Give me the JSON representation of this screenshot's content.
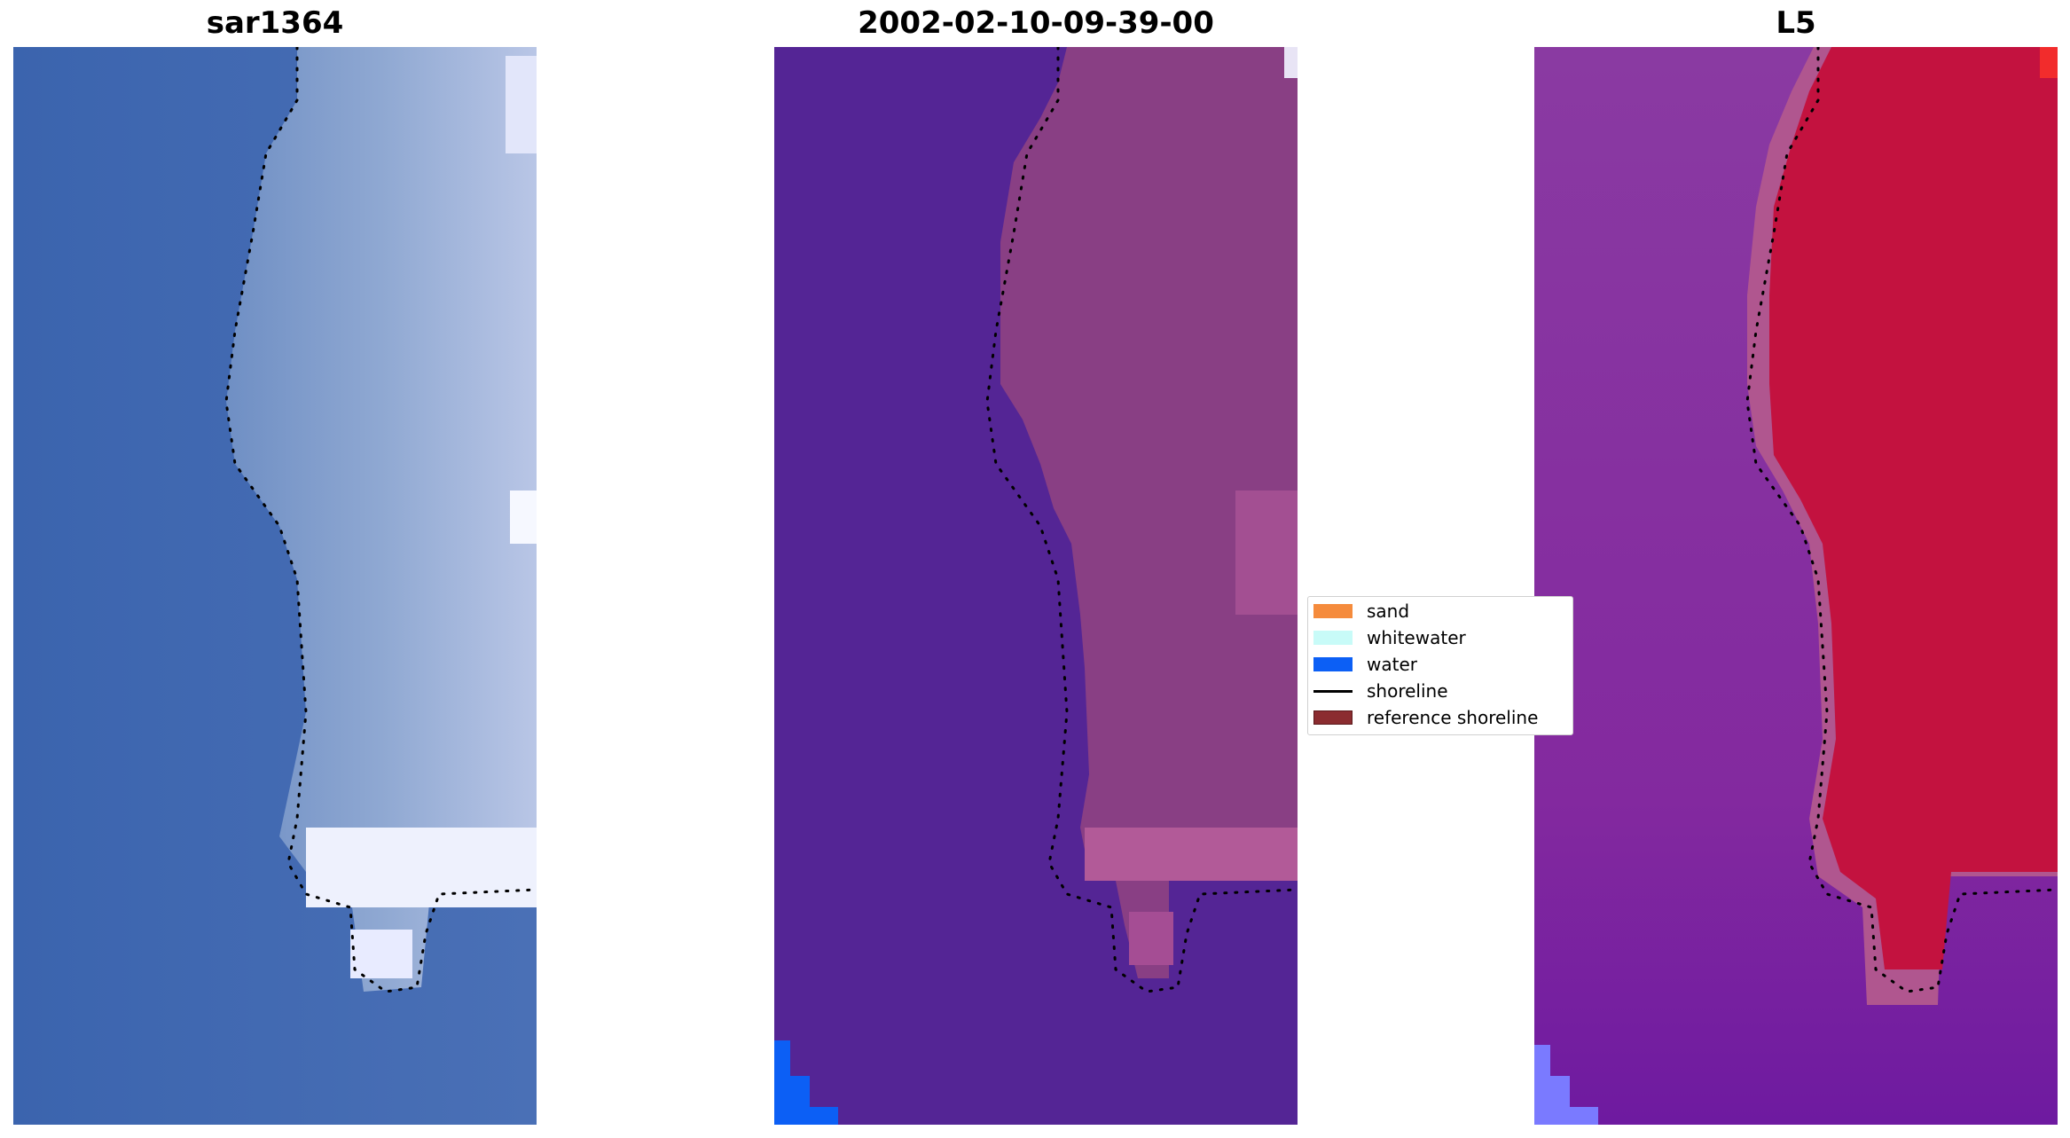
{
  "panels": [
    {
      "title": "sar1364"
    },
    {
      "title": "2002-02-10-09-39-00"
    },
    {
      "title": "L5"
    }
  ],
  "legend": {
    "items": [
      {
        "label": "sand",
        "color": "#f58b3c"
      },
      {
        "label": "whitewater",
        "color": "#c8fbf8"
      },
      {
        "label": "water",
        "color": "#0c5ff5"
      },
      {
        "label": "shoreline",
        "color": "#000000"
      },
      {
        "label": "reference shoreline",
        "color": "#8b2c30"
      }
    ]
  },
  "colors": {
    "rgb_water": "#3a63ad",
    "rgb_land": "#8da6cf",
    "rgb_surf": "#f2f4ff",
    "class_water": "#542595",
    "class_land": "#8a3e84",
    "class_land_light": "#b25a98",
    "class_true_water": "#0c5ff5",
    "index_water": "#8a2c9f",
    "index_land": "#c3113e",
    "index_edge": "#b45a92",
    "index_low": "#7a7aff"
  }
}
